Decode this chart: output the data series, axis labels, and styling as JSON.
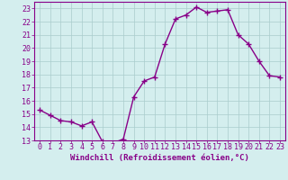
{
  "x": [
    0,
    1,
    2,
    3,
    4,
    5,
    6,
    7,
    8,
    9,
    10,
    11,
    12,
    13,
    14,
    15,
    16,
    17,
    18,
    19,
    20,
    21,
    22,
    23
  ],
  "y": [
    15.3,
    14.9,
    14.5,
    14.4,
    14.1,
    14.4,
    12.9,
    12.8,
    13.1,
    16.3,
    17.5,
    17.8,
    20.3,
    22.2,
    22.5,
    23.1,
    22.7,
    22.8,
    22.9,
    21.0,
    20.3,
    19.0,
    17.9,
    17.8
  ],
  "line_color": "#880088",
  "marker": "+",
  "marker_size": 4,
  "bg_color": "#d4eeee",
  "grid_color": "#aacccc",
  "xlabel": "Windchill (Refroidissement éolien,°C)",
  "xlabel_color": "#880088",
  "xlabel_fontsize": 6.5,
  "tick_color": "#880088",
  "tick_fontsize": 6,
  "ylim": [
    13,
    23.5
  ],
  "xlim": [
    -0.5,
    23.5
  ],
  "yticks": [
    13,
    14,
    15,
    16,
    17,
    18,
    19,
    20,
    21,
    22,
    23
  ],
  "xticks": [
    0,
    1,
    2,
    3,
    4,
    5,
    6,
    7,
    8,
    9,
    10,
    11,
    12,
    13,
    14,
    15,
    16,
    17,
    18,
    19,
    20,
    21,
    22,
    23
  ],
  "line_width": 1.0,
  "spine_color": "#880088"
}
